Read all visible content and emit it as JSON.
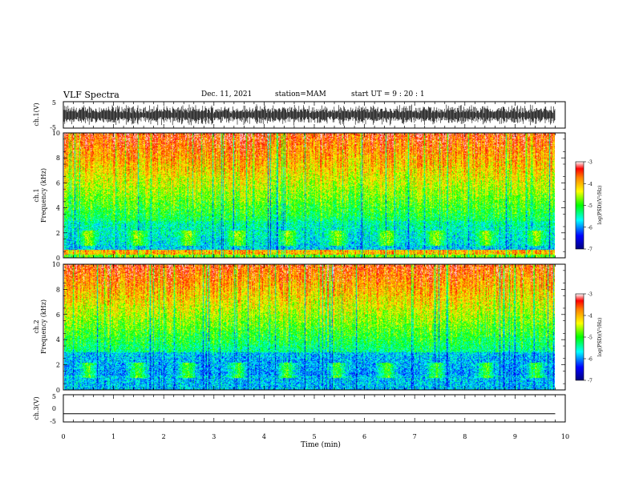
{
  "header": {
    "title": "VLF Spectra",
    "date": "Dec. 11, 2021",
    "station": "station=MAM",
    "start": "start  UT  =   9  : 20 : 1"
  },
  "chart_data": {
    "type": "heatmap",
    "xlabel": "Time  (min)",
    "xlim": [
      0,
      10
    ],
    "xticks": [
      "0",
      "1",
      "2",
      "3",
      "4",
      "5",
      "6",
      "7",
      "8",
      "9",
      "10"
    ],
    "panels": [
      {
        "id": "ch1-waveform",
        "type": "line",
        "ylabel": "ch.1(V)",
        "ylim": [
          -5,
          5
        ],
        "yticks": [
          "5",
          "-5"
        ],
        "description_kind": "dense-noise",
        "amplitude_v": 4.2
      },
      {
        "id": "ch1-spectrogram",
        "type": "heatmap",
        "ylabel_top": "ch.1",
        "ylabel": "Frequency  (kHz)",
        "ylim": [
          0,
          10
        ],
        "yticks": [
          "0",
          "2",
          "4",
          "6",
          "8",
          "10"
        ],
        "colorbar": {
          "label": "log(PSD)(V²/Hz)",
          "range": [
            -7,
            -3
          ],
          "ticks": [
            "-3",
            "-4",
            "-5",
            "-6",
            "-7"
          ]
        }
      },
      {
        "id": "ch2-spectrogram",
        "type": "heatmap",
        "ylabel_top": "ch.2",
        "ylabel": "Frequency  (kHz)",
        "ylim": [
          0,
          10
        ],
        "yticks": [
          "0",
          "2",
          "4",
          "6",
          "8",
          "10"
        ],
        "colorbar": {
          "label": "log(PSD)(V²/Hz)",
          "range": [
            -7,
            -3
          ],
          "ticks": [
            "-3",
            "-4",
            "-5",
            "-6",
            "-7"
          ]
        }
      },
      {
        "id": "ch3-waveform",
        "type": "line",
        "ylabel": "ch.3(V)",
        "ylim": [
          -5,
          5
        ],
        "yticks": [
          "5",
          "0",
          "-5"
        ],
        "constant_value_v": -2
      }
    ],
    "data_end_min": 9.8
  },
  "colors": {
    "low": "#00007f",
    "mid": "#00ff00",
    "high": "#ff0000",
    "axis": "#000000"
  }
}
